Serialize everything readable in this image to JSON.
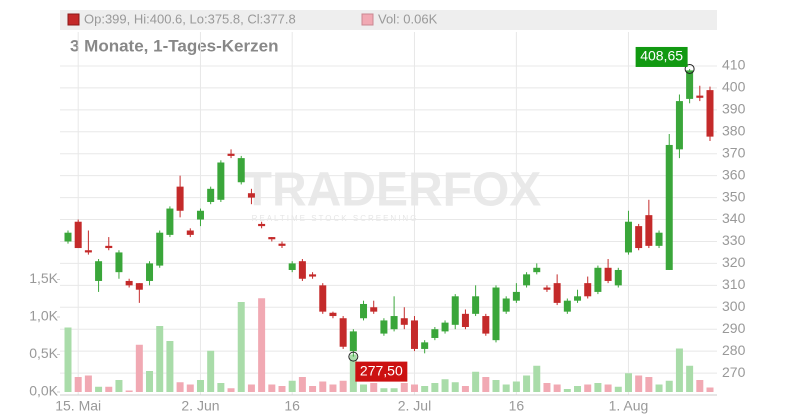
{
  "chart_data": {
    "type": "candlestick",
    "header": "Op:399, Hi:400.6, Lo:375.8, Cl:377.8",
    "volume_header": "Vol: 0.06K",
    "subtitle": "3 Monate, 1-Tages-Kerzen",
    "watermark": "TRADERFOX",
    "watermark_tagline": "REALTIME STOCK SCREENING",
    "categories": [
      null,
      "15. Mai",
      null,
      null,
      null,
      null,
      null,
      null,
      null,
      null,
      null,
      null,
      null,
      "2. Jun",
      null,
      null,
      null,
      null,
      null,
      null,
      null,
      null,
      "16",
      null,
      null,
      null,
      null,
      null,
      null,
      null,
      null,
      null,
      null,
      null,
      "2. Jul",
      null,
      null,
      null,
      null,
      null,
      null,
      null,
      null,
      null,
      "16",
      null,
      null,
      null,
      null,
      null,
      null,
      null,
      null,
      null,
      null,
      "1. Aug",
      null,
      null,
      null,
      null,
      null,
      null,
      null,
      null
    ],
    "open": [
      330,
      339,
      326,
      312,
      328,
      316,
      312,
      311,
      312,
      319,
      333,
      355,
      335,
      340,
      348,
      349,
      370,
      357,
      352,
      338,
      332,
      329,
      317,
      321,
      315,
      310,
      297.5,
      295,
      280,
      295,
      300,
      288,
      290,
      295,
      294,
      281,
      286,
      289,
      292,
      297,
      297,
      296,
      285,
      298,
      303,
      310,
      316,
      309,
      311,
      298,
      303,
      311,
      307,
      318,
      310,
      325,
      337,
      342,
      328,
      317,
      372,
      395,
      396.5,
      399
    ],
    "high": [
      335,
      340,
      335,
      322,
      332,
      326,
      313,
      311,
      321,
      335,
      346,
      360,
      336,
      345,
      355,
      367,
      372,
      369,
      354,
      339,
      332,
      330,
      321,
      322,
      316,
      311,
      298,
      296,
      290,
      303,
      303,
      295,
      305,
      300,
      296,
      285,
      291,
      294,
      306,
      299,
      310,
      297,
      310,
      305,
      311,
      316,
      320,
      310,
      315,
      304,
      308,
      314,
      319,
      322,
      318,
      344,
      338,
      349,
      335,
      379,
      397,
      408.65,
      401,
      400.6
    ],
    "low": [
      329,
      327,
      324,
      307,
      326,
      313,
      309,
      302,
      310,
      318,
      332,
      341,
      332,
      337,
      347,
      348,
      368,
      356,
      347,
      336,
      330,
      327,
      316,
      312,
      313,
      297,
      295,
      281,
      277.5,
      294,
      297,
      287,
      289,
      290,
      280,
      279,
      285,
      288,
      290,
      290,
      296,
      287,
      284,
      297,
      302,
      309,
      315,
      307,
      301,
      297,
      302,
      304,
      306,
      311,
      309,
      324,
      326,
      327,
      327,
      317,
      368,
      393,
      394,
      375.8
    ],
    "close": [
      334,
      327,
      325,
      321,
      327,
      325,
      310,
      308,
      320,
      334,
      345,
      344,
      333,
      344,
      354,
      366,
      369,
      368,
      350,
      337,
      331,
      328,
      320,
      313,
      314,
      298,
      296,
      282,
      289,
      301.5,
      298,
      294,
      296,
      292,
      281,
      284,
      290,
      293,
      305,
      291,
      305,
      288,
      309,
      304,
      307,
      315,
      318,
      308,
      302,
      303,
      305,
      305,
      318,
      312,
      317,
      339,
      327,
      328,
      334,
      374,
      394,
      408,
      395.5,
      377.8
    ],
    "volume": [
      0.86,
      0.2,
      0.22,
      0.07,
      0.07,
      0.16,
      0.02,
      0.63,
      0.28,
      0.88,
      0.68,
      0.13,
      0.1,
      0.16,
      0.55,
      0.12,
      0.05,
      1.2,
      0.1,
      1.25,
      0.1,
      0.08,
      0.15,
      0.2,
      0.08,
      0.14,
      0.1,
      0.15,
      0.5,
      0.1,
      0.12,
      0.05,
      0.05,
      0.12,
      0.1,
      0.08,
      0.12,
      0.17,
      0.13,
      0.08,
      0.27,
      0.2,
      0.16,
      0.1,
      0.14,
      0.22,
      0.35,
      0.12,
      0.1,
      0.04,
      0.08,
      0.1,
      0.12,
      0.1,
      0.07,
      0.25,
      0.22,
      0.2,
      0.1,
      0.15,
      0.58,
      0.35,
      0.16,
      0.06
    ],
    "up_color": "#3aa63a",
    "down_color": "#c42a2a",
    "volume_up_color": "#a9dca9",
    "volume_down_color": "#f1a9b3",
    "ylim": [
      260,
      425.5
    ],
    "yticks": [
      270,
      280,
      290,
      300,
      310,
      320,
      330,
      340,
      350,
      360,
      370,
      380,
      390,
      400,
      410
    ],
    "y2lim": [
      -0.04,
      4.8
    ],
    "y2ticks": [
      {
        "value": 0,
        "label": "0,0K"
      },
      {
        "value": 0.5,
        "label": "0,5K"
      },
      {
        "value": 1,
        "label": "1,0K"
      },
      {
        "value": 1.5,
        "label": "1,5K"
      }
    ],
    "high_label": "408,65",
    "low_label": "277,50",
    "grid": true
  }
}
